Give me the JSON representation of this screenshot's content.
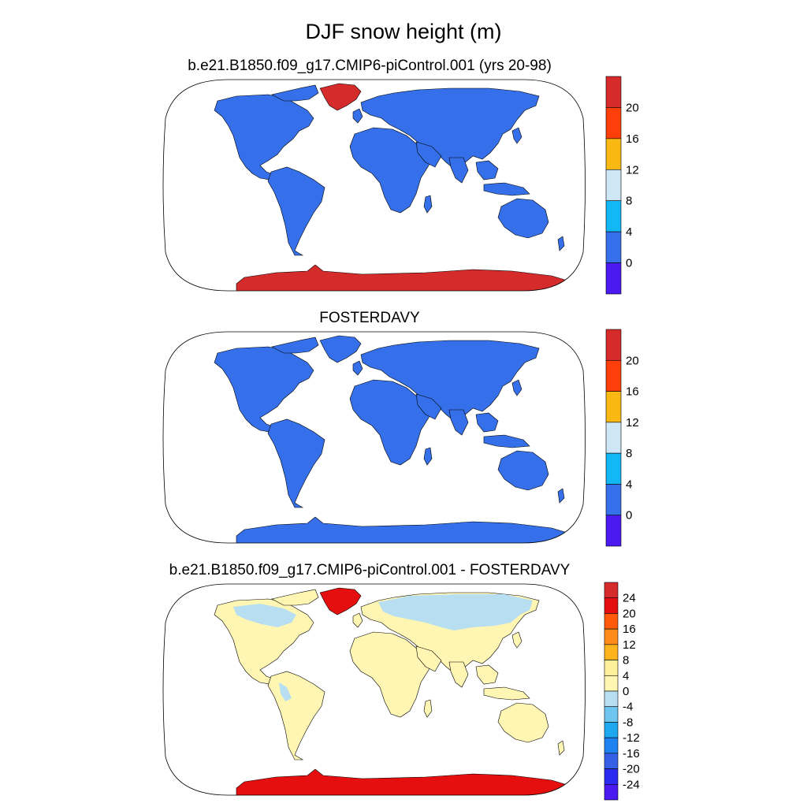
{
  "figure": {
    "title": "DJF snow height (m)"
  },
  "panels": [
    {
      "title": "b.e21.B1850.f09_g17.CMIP6-piControl.001 (yrs 20-98)",
      "colorbar": {
        "labels": [
          "20",
          "16",
          "12",
          "8",
          "4",
          "0"
        ],
        "colors": [
          "#d62b2b",
          "#ff3f0a",
          "#f9b812",
          "#cfe6f7",
          "#12b8f5",
          "#3570ea",
          "#4a1af0"
        ]
      },
      "map": {
        "land_color": "#3570ea",
        "greenland_color": "#d62b2b",
        "antarctica_color": "#d62b2b",
        "ocean_color": "#ffffff"
      }
    },
    {
      "title": "FOSTERDAVY",
      "colorbar": {
        "labels": [
          "20",
          "16",
          "12",
          "8",
          "4",
          "0"
        ],
        "colors": [
          "#d62b2b",
          "#ff3f0a",
          "#f9b812",
          "#cfe6f7",
          "#12b8f5",
          "#3570ea",
          "#4a1af0"
        ]
      },
      "map": {
        "land_color": "#3570ea",
        "greenland_color": "#3570ea",
        "antarctica_color": "#3570ea",
        "ocean_color": "#ffffff"
      }
    },
    {
      "title": "b.e21.B1850.f09_g17.CMIP6-piControl.001 - FOSTERDAVY",
      "colorbar": {
        "labels": [
          "24",
          "20",
          "16",
          "12",
          "8",
          "4",
          "0",
          "-4",
          "-8",
          "-12",
          "-16",
          "-20",
          "-24"
        ],
        "colors": [
          "#d62b2b",
          "#e60f0f",
          "#ff5a0a",
          "#ff8c1a",
          "#ffb41e",
          "#fff09a",
          "#fff6b3",
          "#b8def2",
          "#6ec6f0",
          "#1ea8f0",
          "#1e82f0",
          "#3560e6",
          "#2a2af0",
          "#4a1af0"
        ]
      },
      "map": {
        "land_color": "#fff6b3",
        "greenland_color": "#e60f0f",
        "antarctica_color": "#e60f0f",
        "high_lat_color": "#b8def2",
        "ocean_color": "#ffffff"
      }
    }
  ]
}
